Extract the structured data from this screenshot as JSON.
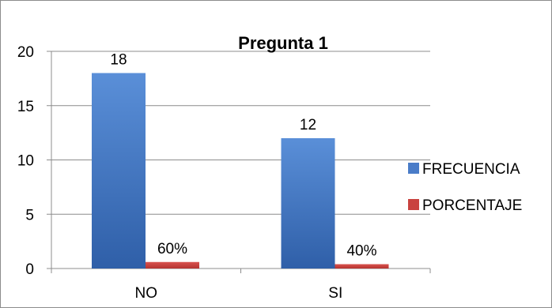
{
  "chart_data": {
    "type": "bar",
    "title": "Pregunta 1",
    "categories": [
      "NO",
      "SI"
    ],
    "series": [
      {
        "name": "FRECUENCIA",
        "values": [
          18,
          12
        ],
        "labels": [
          "18",
          "12"
        ],
        "color": "#4a7cc8"
      },
      {
        "name": "PORCENTAJE",
        "values": [
          0.6,
          0.4
        ],
        "labels": [
          "60%",
          "40%"
        ],
        "color": "#c9423f"
      }
    ],
    "yticks": [
      "0",
      "5",
      "10",
      "15",
      "20"
    ],
    "ylim": [
      0,
      20
    ],
    "grid": true,
    "legend": "right"
  }
}
